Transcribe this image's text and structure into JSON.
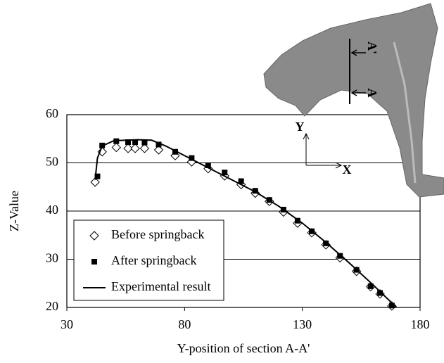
{
  "chart_data": {
    "type": "scatter",
    "x_label": "Y-position of section A-A'",
    "y_label": "Z-Value",
    "xlim": [
      30,
      180
    ],
    "xticks": [
      30,
      80,
      130,
      180
    ],
    "ylim": [
      20,
      60
    ],
    "yticks": [
      20,
      30,
      40,
      50,
      60
    ],
    "grid": true,
    "legend": "lower left",
    "series": [
      {
        "name": "Before springback",
        "color": "#000000",
        "marker": "diamond",
        "x": [
          42,
          45,
          51,
          56,
          59,
          63,
          69,
          76,
          83,
          90,
          97,
          104,
          110,
          116,
          122,
          128,
          134,
          140,
          146,
          153,
          159,
          163,
          168
        ],
        "values": [
          46,
          52.3,
          53.2,
          53,
          53,
          53,
          52.7,
          51.5,
          50.2,
          48.8,
          47.3,
          45.5,
          43.7,
          42,
          39.8,
          37.5,
          35.5,
          33,
          30.3,
          27.5,
          24.3,
          22.8,
          20.3
        ]
      },
      {
        "name": "After springback",
        "color": "#000000",
        "marker": "square",
        "x": [
          43,
          45,
          51,
          56,
          59,
          63,
          69,
          76,
          83,
          90,
          97,
          104,
          110,
          116,
          122,
          128,
          134,
          140,
          146,
          153,
          159,
          163,
          168
        ],
        "values": [
          47.2,
          53.6,
          54.5,
          54.3,
          54.3,
          54.2,
          53.8,
          52.3,
          51,
          49.5,
          48,
          46.2,
          44.2,
          42.3,
          40.3,
          38,
          35.8,
          33.3,
          30.7,
          27.8,
          24.4,
          23,
          20.4
        ]
      },
      {
        "name": "Experimental result",
        "color": "#000000",
        "marker": "line",
        "x": [
          42,
          43,
          45,
          50,
          60,
          66,
          72,
          80,
          90,
          100,
          110,
          120,
          130,
          140,
          150,
          160,
          170
        ],
        "values": [
          46.5,
          51,
          53.5,
          54.6,
          54.8,
          54.7,
          53.5,
          51.5,
          49,
          46.5,
          44,
          41,
          37.5,
          33.5,
          29.2,
          24.7,
          20
        ]
      }
    ],
    "inset_labels": [
      "Y",
      "X",
      "A'",
      "A"
    ]
  }
}
